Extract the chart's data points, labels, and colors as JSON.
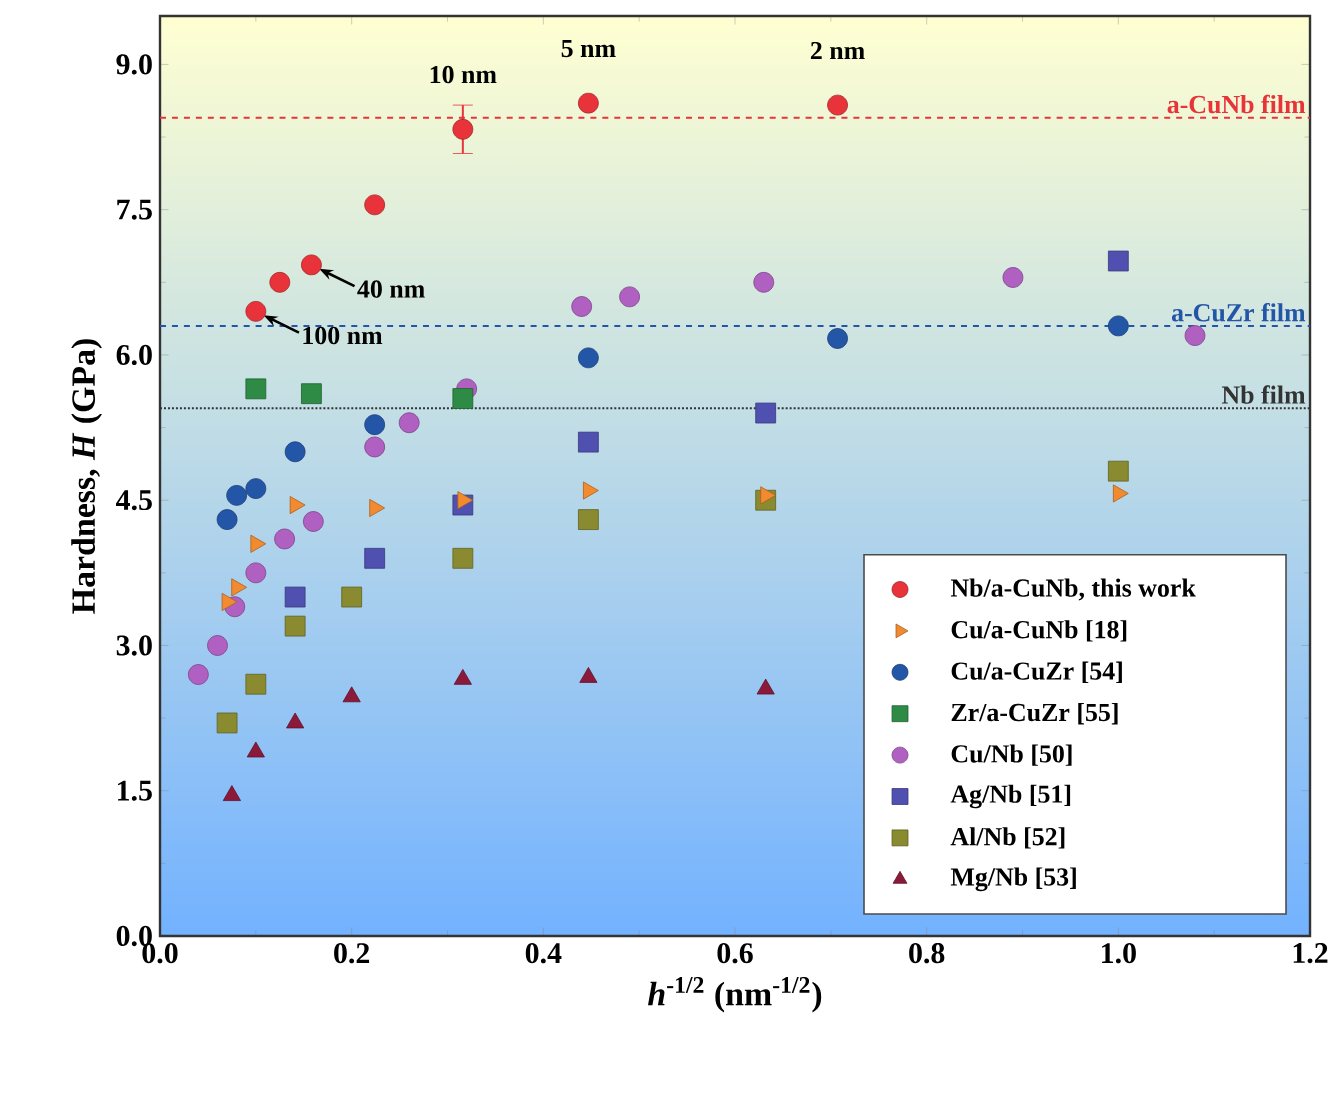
{
  "chart_data": {
    "type": "scatter",
    "xlabel": "*h*$^{-1/2}$ (nm$^{-1/2}$)",
    "ylabel": "Hardness, *H* (GPa)",
    "xlim": [
      0,
      1.2
    ],
    "ylim": [
      0,
      9.5
    ],
    "xticks": [
      {
        "value": 0,
        "label": "0.0"
      },
      {
        "value": 0.2,
        "label": "0.2"
      },
      {
        "value": 0.4,
        "label": "0.4"
      },
      {
        "value": 0.6,
        "label": "0.6"
      },
      {
        "value": 0.8,
        "label": "0.8"
      },
      {
        "value": 1,
        "label": "1.0"
      },
      {
        "value": 1.2,
        "label": "1.2"
      }
    ],
    "yticks": [
      {
        "value": 0,
        "label": "0.0"
      },
      {
        "value": 1.5,
        "label": "1.5"
      },
      {
        "value": 3,
        "label": "3.0"
      },
      {
        "value": 4.5,
        "label": "4.5"
      },
      {
        "value": 6,
        "label": "6.0"
      },
      {
        "value": 7.5,
        "label": "7.5"
      },
      {
        "value": 9,
        "label": "9.0"
      }
    ],
    "legend": "bottom right",
    "grid": false,
    "series": [
      {
        "name": "Nb/a-CuNb, this work",
        "color": "#e8333a",
        "marker": "circle",
        "x": [
          0.1,
          0.125,
          0.158,
          0.224,
          0.316,
          0.447,
          0.707
        ],
        "values": [
          6.45,
          6.75,
          6.93,
          7.55,
          8.33,
          8.6,
          8.58
        ],
        "errors": [
          null,
          null,
          null,
          null,
          0.25,
          null,
          null
        ]
      },
      {
        "name": "Cu/a-CuNb [18]",
        "color": "#f28a30",
        "marker": "triangle",
        "x": [
          0.07,
          0.08,
          0.1,
          0.141,
          0.224,
          0.316,
          0.447,
          0.632,
          1.0
        ],
        "values": [
          3.45,
          3.6,
          4.05,
          4.45,
          4.42,
          4.5,
          4.6,
          4.55,
          4.57
        ]
      },
      {
        "name": "Cu/a-CuZr [54]",
        "color": "#2456a8",
        "marker": "circle",
        "x": [
          0.07,
          0.08,
          0.1,
          0.141,
          0.224,
          0.447,
          0.707,
          1.0
        ],
        "values": [
          4.3,
          4.55,
          4.62,
          5.0,
          5.28,
          5.97,
          6.17,
          6.3
        ]
      },
      {
        "name": "Zr/a-CuZr [55]",
        "color": "#2e8b45",
        "marker": "square",
        "x": [
          0.1,
          0.158,
          0.316
        ],
        "values": [
          5.65,
          5.6,
          5.55
        ]
      },
      {
        "name": "Cu/Nb [50]",
        "color": "#b060c0",
        "marker": "circle",
        "x": [
          0.04,
          0.06,
          0.078,
          0.1,
          0.13,
          0.16,
          0.224,
          0.26,
          0.32,
          0.44,
          0.49,
          0.63,
          0.89,
          1.08
        ],
        "values": [
          2.7,
          3.0,
          3.4,
          3.75,
          4.1,
          4.28,
          5.05,
          5.3,
          5.65,
          6.5,
          6.6,
          6.75,
          6.8,
          6.2
        ]
      },
      {
        "name": "Ag/Nb [51]",
        "color": "#5050b0",
        "marker": "square",
        "x": [
          0.141,
          0.224,
          0.316,
          0.447,
          0.632,
          1.0
        ],
        "values": [
          3.5,
          3.9,
          4.45,
          5.1,
          5.4,
          6.97
        ]
      },
      {
        "name": "Al/Nb [52]",
        "color": "#8a8a30",
        "marker": "square",
        "x": [
          0.07,
          0.1,
          0.141,
          0.2,
          0.316,
          0.447,
          0.632,
          1.0
        ],
        "values": [
          2.2,
          2.6,
          3.2,
          3.5,
          3.9,
          4.3,
          4.5,
          4.8
        ]
      },
      {
        "name": "Mg/Nb [53]",
        "color": "#8b1a3a",
        "marker": "triangle",
        "x": [
          0.075,
          0.1,
          0.141,
          0.2,
          0.316,
          0.447,
          0.632
        ],
        "values": [
          1.45,
          1.9,
          2.2,
          2.47,
          2.65,
          2.67,
          2.55
        ]
      }
    ],
    "ref_lines": [
      {
        "axis": "y",
        "value": 8.45,
        "label": "a-CuNb film",
        "color": "#e8333a",
        "line_style": "dashed"
      },
      {
        "axis": "y",
        "value": 6.3,
        "label": "a-CuZr film",
        "color": "#2456a8",
        "line_style": "dashed"
      },
      {
        "axis": "y",
        "value": 5.45,
        "label": "Nb film",
        "color": "#333333",
        "line_style": "dotted"
      }
    ],
    "annotations": [
      {
        "text": "10 nm",
        "x": 0.316,
        "y": 8.33
      },
      {
        "text": "5 nm",
        "x": 0.447,
        "y": 8.6
      },
      {
        "text": "2 nm",
        "x": 0.707,
        "y": 8.58
      },
      {
        "text": "40 nm",
        "x": 0.158,
        "y": 6.93
      },
      {
        "text": "100 nm",
        "x": 0.1,
        "y": 6.45
      }
    ]
  }
}
